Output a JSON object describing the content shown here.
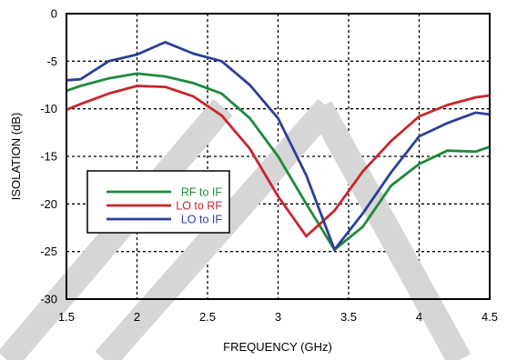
{
  "chart_data": {
    "type": "line",
    "xlabel": "FREQUENCY (GHz)",
    "ylabel": "ISOLATION (dB)",
    "xlim": [
      1.5,
      4.5
    ],
    "ylim": [
      -30,
      0
    ],
    "xticks": [
      1.5,
      2,
      2.5,
      3,
      3.5,
      4,
      4.5
    ],
    "xtick_labels": [
      "1.5",
      "2",
      "2.5",
      "3",
      "3.5",
      "4",
      "4.5"
    ],
    "yticks": [
      0,
      -5,
      -10,
      -15,
      -20,
      -25,
      -30
    ],
    "ytick_labels": [
      "0",
      "-5",
      "-10",
      "-15",
      "-20",
      "-25",
      "-30"
    ],
    "grid": true,
    "grid_style": "dashed",
    "legend_position": "center-left",
    "series": [
      {
        "name": "RF to IF",
        "color": "#1f8a3c",
        "x": [
          1.5,
          1.6,
          1.8,
          2.0,
          2.2,
          2.4,
          2.6,
          2.8,
          3.0,
          3.2,
          3.4,
          3.6,
          3.8,
          4.0,
          4.2,
          4.4,
          4.5
        ],
        "y": [
          -8.1,
          -7.6,
          -6.8,
          -6.3,
          -6.6,
          -7.3,
          -8.4,
          -11.0,
          -15.0,
          -20.0,
          -24.8,
          -22.4,
          -18.1,
          -15.8,
          -14.4,
          -14.5,
          -14.0
        ]
      },
      {
        "name": "LO to RF",
        "color": "#c8262b",
        "x": [
          1.5,
          1.6,
          1.8,
          2.0,
          2.2,
          2.4,
          2.6,
          2.8,
          3.0,
          3.2,
          3.4,
          3.6,
          3.8,
          4.0,
          4.2,
          4.4,
          4.5
        ],
        "y": [
          -10.1,
          -9.5,
          -8.4,
          -7.6,
          -7.7,
          -8.7,
          -10.7,
          -14.2,
          -19.2,
          -23.4,
          -20.7,
          -16.6,
          -13.4,
          -10.8,
          -9.6,
          -8.8,
          -8.6
        ]
      },
      {
        "name": "LO to IF",
        "color": "#2b3f99",
        "x": [
          1.5,
          1.6,
          1.8,
          2.0,
          2.2,
          2.4,
          2.6,
          2.8,
          3.0,
          3.2,
          3.4,
          3.6,
          3.8,
          4.0,
          4.2,
          4.4,
          4.5
        ],
        "y": [
          -7.0,
          -6.9,
          -5.0,
          -4.3,
          -3.0,
          -4.2,
          -5.0,
          -7.5,
          -11.0,
          -17.0,
          -24.8,
          -21.0,
          -16.7,
          -12.9,
          -11.5,
          -10.4,
          -10.6
        ]
      }
    ]
  }
}
